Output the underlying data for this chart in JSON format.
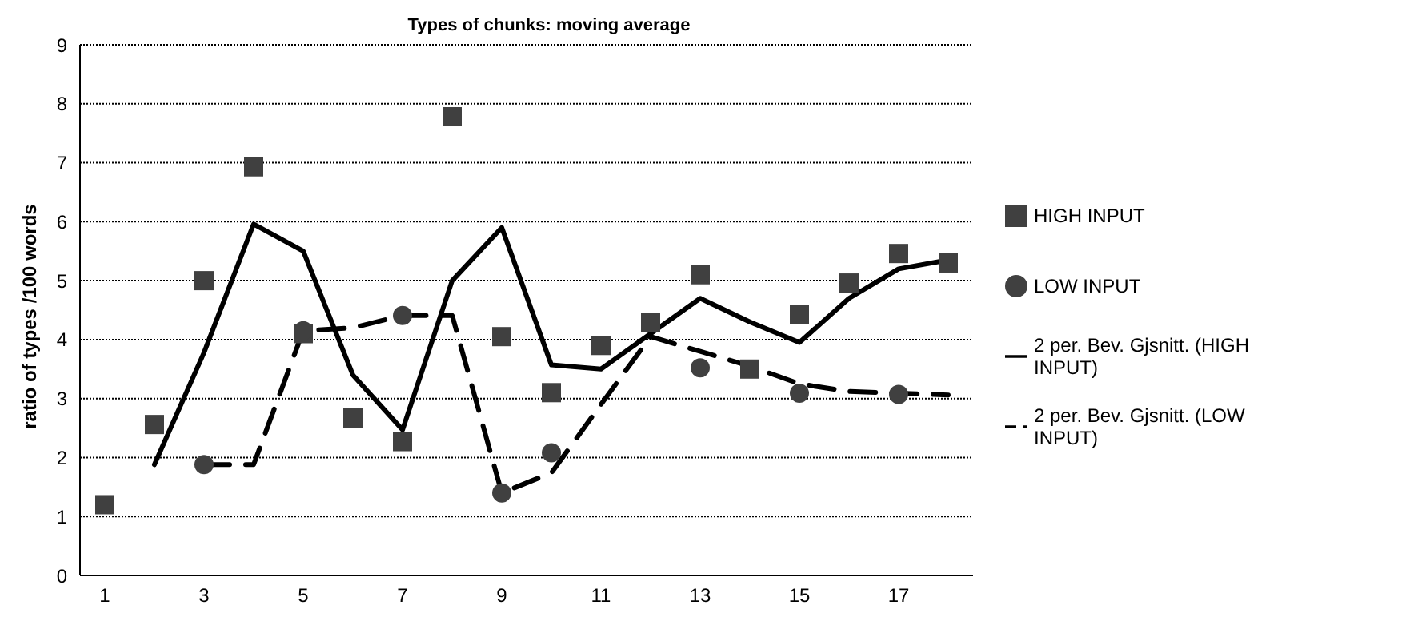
{
  "chart_data": {
    "type": "scatter",
    "title": "Types of chunks: moving average",
    "ylabel": "ratio of types /100 words",
    "x": [
      1,
      2,
      3,
      4,
      5,
      6,
      7,
      8,
      9,
      10,
      11,
      12,
      13,
      14,
      15,
      16,
      17,
      18
    ],
    "series": [
      {
        "name": "HIGH INPUT",
        "marker": "square",
        "color": "#404040",
        "values": [
          1.2,
          2.56,
          5.0,
          6.93,
          4.1,
          2.67,
          2.27,
          7.78,
          4.05,
          3.1,
          3.9,
          4.29,
          5.1,
          3.5,
          4.43,
          4.96,
          5.46,
          5.3
        ]
      },
      {
        "name": "LOW INPUT",
        "marker": "circle",
        "color": "#404040",
        "values": [
          null,
          null,
          1.88,
          null,
          4.15,
          null,
          4.41,
          null,
          1.4,
          2.08,
          null,
          null,
          3.52,
          null,
          3.09,
          null,
          3.07,
          null
        ]
      },
      {
        "name": "2 per. Bev. Gjsnitt. (HIGH INPUT)",
        "type": "line",
        "marker": "none",
        "line_style": "solid",
        "color": "#000000",
        "values": [
          null,
          1.88,
          3.78,
          5.96,
          5.5,
          3.4,
          2.47,
          5.0,
          5.9,
          3.57,
          3.5,
          4.1,
          4.7,
          4.3,
          3.95,
          4.7,
          5.2,
          5.35
        ]
      },
      {
        "name": "2 per. Bev. Gjsnitt. (LOW INPUT)",
        "type": "line",
        "marker": "none",
        "line_style": "dashed",
        "color": "#000000",
        "values": [
          null,
          null,
          1.88,
          1.88,
          4.15,
          4.2,
          4.41,
          4.41,
          1.4,
          1.74,
          2.9,
          4.05,
          3.8,
          3.55,
          3.25,
          3.12,
          3.09,
          3.06
        ]
      }
    ],
    "xlim": [
      0.5,
      18.5
    ],
    "xticks": [
      1,
      3,
      5,
      7,
      9,
      11,
      13,
      15,
      17
    ],
    "ylim": [
      0,
      9
    ],
    "yticks": [
      0,
      1,
      2,
      3,
      4,
      5,
      6,
      7,
      8,
      9
    ],
    "grid": "y",
    "legend": "right"
  }
}
